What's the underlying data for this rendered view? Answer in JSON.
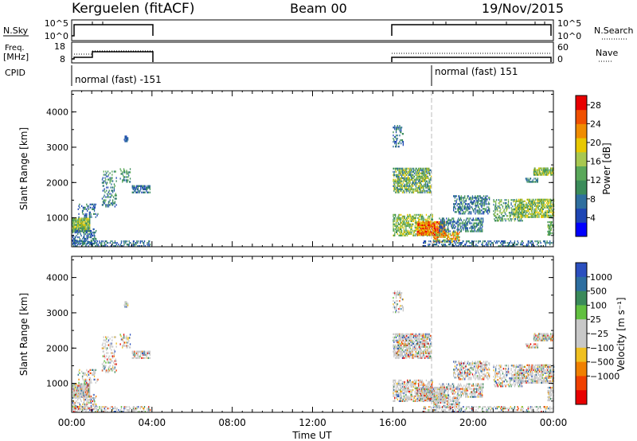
{
  "header": {
    "station": "Kerguelen (fitACF)",
    "beam": "Beam 00",
    "date": "19/Nov/2015"
  },
  "top_panels": {
    "nsky_label": "N.Sky",
    "nsky_ticks": [
      "10^5",
      "10^0"
    ],
    "nsearch_label": "N.Search",
    "nsearch_ticks": [
      "10^5",
      "10^0"
    ],
    "freq_label": "Freq.",
    "freq_unit": "[MHz]",
    "freq_ticks": [
      "18",
      "8"
    ],
    "nave_label": "Nave",
    "nave_ticks": [
      "60",
      "0"
    ],
    "cpid_label": "CPID",
    "cpid_segments": [
      "normal (fast) -151",
      "normal (fast) 151"
    ]
  },
  "colors": {
    "power_scale": [
      "#0000ff",
      "#1e46b4",
      "#2f6f9f",
      "#3b8c5a",
      "#5aa85a",
      "#a8c850",
      "#e8c800",
      "#f08c00",
      "#f05000",
      "#e80000"
    ],
    "velocity_scale": [
      "#2b4fbf",
      "#2d6ea0",
      "#3a8a5a",
      "#62c040",
      "#c8c8c8",
      "#c8c8c8",
      "#f0c020",
      "#f08000",
      "#f04000",
      "#e80000"
    ],
    "ground_scatter": "#c8c8c8"
  },
  "chart_data": [
    {
      "type": "heatmap",
      "name": "power",
      "ylabel": "Slant Range [km]",
      "yticks": [
        "1000",
        "2000",
        "3000",
        "4000"
      ],
      "ylim": [
        180,
        4600
      ],
      "xlim_hours": [
        0,
        24
      ],
      "colorbar_label": "Power [dB]",
      "colorbar_ticks": [
        "4",
        "8",
        "12",
        "16",
        "20",
        "24",
        "28"
      ],
      "colorbar_range": [
        0,
        30
      ],
      "data_windows_ut": [
        [
          "00:00",
          "04:00"
        ],
        [
          "16:00",
          "24:00"
        ]
      ]
    },
    {
      "type": "heatmap",
      "name": "velocity",
      "ylabel": "Slant Range [km]",
      "yticks": [
        "1000",
        "2000",
        "3000",
        "4000"
      ],
      "ylim": [
        180,
        4600
      ],
      "xlim_hours": [
        0,
        24
      ],
      "colorbar_label": "Velocity [m s⁻¹]",
      "colorbar_ticks": [
        "1000",
        "500",
        "100",
        "25",
        "−25",
        "−100",
        "−500",
        "−1000"
      ],
      "xlabel": "Time UT",
      "xticks": [
        "00:00",
        "04:00",
        "08:00",
        "12:00",
        "16:00",
        "20:00",
        "00:00"
      ]
    }
  ]
}
